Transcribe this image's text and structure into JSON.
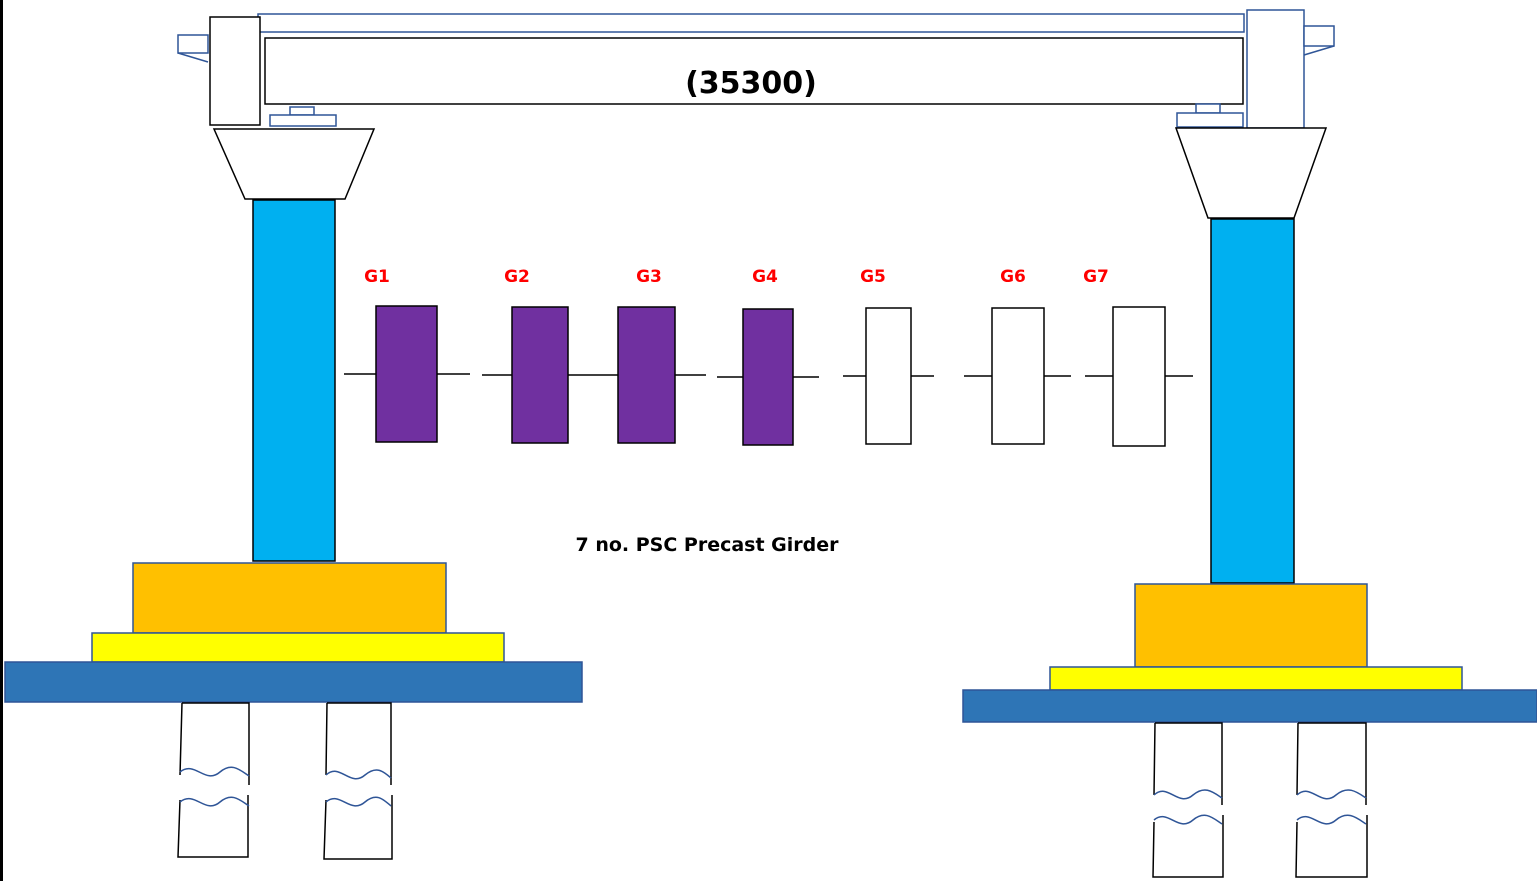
{
  "beam": {
    "span_label": "(35300)"
  },
  "caption": "7 no. PSC Precast Girder",
  "colors": {
    "column": "#00B0F0",
    "pier_cap_block": "#FFC000",
    "bearing_pad": "#FFFF00",
    "foundation_slab": "#2E75B6",
    "girder_erected": "#7030A0",
    "girder_pending": "#FFFFFF",
    "girder_label": "#FF0000",
    "outline": "#2F5597"
  },
  "girders": [
    {
      "label": "G1",
      "status": "erected"
    },
    {
      "label": "G2",
      "status": "erected"
    },
    {
      "label": "G3",
      "status": "erected"
    },
    {
      "label": "G4",
      "status": "erected"
    },
    {
      "label": "G5",
      "status": "pending"
    },
    {
      "label": "G6",
      "status": "pending"
    },
    {
      "label": "G7",
      "status": "pending"
    }
  ]
}
